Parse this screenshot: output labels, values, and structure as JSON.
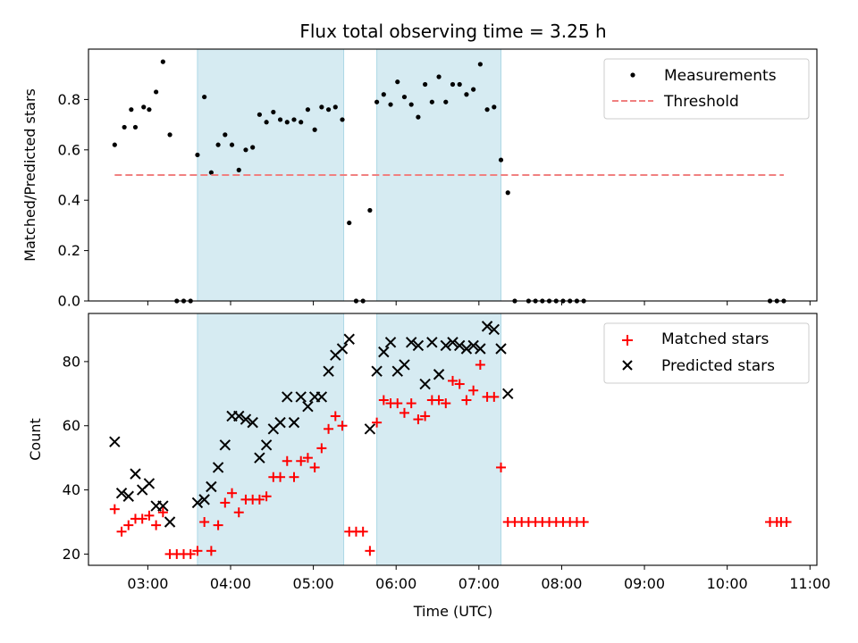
{
  "chart_data": [
    {
      "type": "scatter",
      "title": "Flux total observing time = 3.25 h",
      "xlabel": "",
      "ylabel": "Matched/Predicted stars",
      "xlim": [
        "02:17",
        "11:05"
      ],
      "ylim": [
        0,
        1.0
      ],
      "yticks": [
        0.0,
        0.2,
        0.4,
        0.6,
        0.8
      ],
      "ytick_labels": [
        "0.0",
        "0.2",
        "0.4",
        "0.6",
        "0.8"
      ],
      "legend_position": "top-right",
      "shaded_intervals": [
        [
          "03:36",
          "05:22"
        ],
        [
          "05:46",
          "07:16"
        ]
      ],
      "series": [
        {
          "name": "Measurements",
          "color": "#000000",
          "marker": "dot",
          "points": [
            [
              "02:36",
              0.62
            ],
            [
              "02:43",
              0.69
            ],
            [
              "02:48",
              0.76
            ],
            [
              "02:51",
              0.69
            ],
            [
              "02:57",
              0.77
            ],
            [
              "03:01",
              0.76
            ],
            [
              "03:06",
              0.83
            ],
            [
              "03:11",
              0.95
            ],
            [
              "03:16",
              0.66
            ],
            [
              "03:21",
              0.0
            ],
            [
              "03:26",
              0.0
            ],
            [
              "03:31",
              0.0
            ],
            [
              "03:36",
              0.58
            ],
            [
              "03:41",
              0.81
            ],
            [
              "03:46",
              0.51
            ],
            [
              "03:51",
              0.62
            ],
            [
              "03:56",
              0.66
            ],
            [
              "04:01",
              0.62
            ],
            [
              "04:06",
              0.52
            ],
            [
              "04:11",
              0.6
            ],
            [
              "04:16",
              0.61
            ],
            [
              "04:21",
              0.74
            ],
            [
              "04:26",
              0.71
            ],
            [
              "04:31",
              0.75
            ],
            [
              "04:36",
              0.72
            ],
            [
              "04:41",
              0.71
            ],
            [
              "04:46",
              0.72
            ],
            [
              "04:51",
              0.71
            ],
            [
              "04:56",
              0.76
            ],
            [
              "05:01",
              0.68
            ],
            [
              "05:06",
              0.77
            ],
            [
              "05:11",
              0.76
            ],
            [
              "05:16",
              0.77
            ],
            [
              "05:21",
              0.72
            ],
            [
              "05:26",
              0.31
            ],
            [
              "05:31",
              0.0
            ],
            [
              "05:36",
              0.0
            ],
            [
              "05:41",
              0.36
            ],
            [
              "05:46",
              0.79
            ],
            [
              "05:51",
              0.82
            ],
            [
              "05:56",
              0.78
            ],
            [
              "06:01",
              0.87
            ],
            [
              "06:06",
              0.81
            ],
            [
              "06:11",
              0.78
            ],
            [
              "06:16",
              0.73
            ],
            [
              "06:21",
              0.86
            ],
            [
              "06:26",
              0.79
            ],
            [
              "06:31",
              0.89
            ],
            [
              "06:36",
              0.79
            ],
            [
              "06:41",
              0.86
            ],
            [
              "06:46",
              0.86
            ],
            [
              "06:51",
              0.82
            ],
            [
              "06:56",
              0.84
            ],
            [
              "07:01",
              0.94
            ],
            [
              "07:06",
              0.76
            ],
            [
              "07:11",
              0.77
            ],
            [
              "07:16",
              0.56
            ],
            [
              "07:21",
              0.43
            ],
            [
              "07:26",
              0.0
            ],
            [
              "07:36",
              0.0
            ],
            [
              "07:41",
              0.0
            ],
            [
              "07:46",
              0.0
            ],
            [
              "07:51",
              0.0
            ],
            [
              "07:56",
              0.0
            ],
            [
              "08:01",
              0.0
            ],
            [
              "08:06",
              0.0
            ],
            [
              "08:11",
              0.0
            ],
            [
              "08:16",
              0.0
            ],
            [
              "10:31",
              0.0
            ],
            [
              "10:36",
              0.0
            ],
            [
              "10:41",
              0.0
            ]
          ]
        },
        {
          "name": "Threshold",
          "color": "#f08080",
          "style": "dashed",
          "points": [
            [
              "02:36",
              0.5
            ],
            [
              "10:41",
              0.5
            ]
          ]
        }
      ]
    },
    {
      "type": "scatter",
      "title": "",
      "xlabel": "Time (UTC)",
      "ylabel": "Count",
      "xlim": [
        "02:17",
        "11:05"
      ],
      "ylim": [
        16.5,
        95
      ],
      "yticks": [
        20,
        40,
        60,
        80
      ],
      "ytick_labels": [
        "20",
        "40",
        "60",
        "80"
      ],
      "xticks": [
        "03:00",
        "04:00",
        "05:00",
        "06:00",
        "07:00",
        "08:00",
        "09:00",
        "10:00",
        "11:00"
      ],
      "legend_position": "top-right",
      "shaded_intervals": [
        [
          "03:36",
          "05:22"
        ],
        [
          "05:46",
          "07:16"
        ]
      ],
      "series": [
        {
          "name": "Matched stars",
          "color": "#ff0000",
          "marker": "plus",
          "points": [
            [
              "02:36",
              34
            ],
            [
              "02:41",
              27
            ],
            [
              "02:46",
              29
            ],
            [
              "02:51",
              31
            ],
            [
              "02:56",
              31
            ],
            [
              "03:01",
              32
            ],
            [
              "03:06",
              29
            ],
            [
              "03:11",
              33
            ],
            [
              "03:16",
              20
            ],
            [
              "03:21",
              20
            ],
            [
              "03:26",
              20
            ],
            [
              "03:31",
              20
            ],
            [
              "03:36",
              21
            ],
            [
              "03:41",
              30
            ],
            [
              "03:46",
              21
            ],
            [
              "03:51",
              29
            ],
            [
              "03:56",
              36
            ],
            [
              "04:01",
              39
            ],
            [
              "04:06",
              33
            ],
            [
              "04:11",
              37
            ],
            [
              "04:16",
              37
            ],
            [
              "04:21",
              37
            ],
            [
              "04:26",
              38
            ],
            [
              "04:31",
              44
            ],
            [
              "04:36",
              44
            ],
            [
              "04:41",
              49
            ],
            [
              "04:46",
              44
            ],
            [
              "04:51",
              49
            ],
            [
              "04:56",
              50
            ],
            [
              "05:01",
              47
            ],
            [
              "05:06",
              53
            ],
            [
              "05:11",
              59
            ],
            [
              "05:16",
              63
            ],
            [
              "05:21",
              60
            ],
            [
              "05:26",
              27
            ],
            [
              "05:31",
              27
            ],
            [
              "05:36",
              27
            ],
            [
              "05:41",
              21
            ],
            [
              "05:46",
              61
            ],
            [
              "05:51",
              68
            ],
            [
              "05:56",
              67
            ],
            [
              "06:01",
              67
            ],
            [
              "06:06",
              64
            ],
            [
              "06:11",
              67
            ],
            [
              "06:16",
              62
            ],
            [
              "06:21",
              63
            ],
            [
              "06:26",
              68
            ],
            [
              "06:31",
              68
            ],
            [
              "06:36",
              67
            ],
            [
              "06:41",
              74
            ],
            [
              "06:46",
              73
            ],
            [
              "06:51",
              68
            ],
            [
              "06:56",
              71
            ],
            [
              "07:01",
              79
            ],
            [
              "07:06",
              69
            ],
            [
              "07:11",
              69
            ],
            [
              "07:16",
              47
            ],
            [
              "07:21",
              30
            ],
            [
              "07:26",
              30
            ],
            [
              "07:31",
              30
            ],
            [
              "07:36",
              30
            ],
            [
              "07:41",
              30
            ],
            [
              "07:46",
              30
            ],
            [
              "07:51",
              30
            ],
            [
              "07:56",
              30
            ],
            [
              "08:01",
              30
            ],
            [
              "08:06",
              30
            ],
            [
              "08:11",
              30
            ],
            [
              "08:16",
              30
            ],
            [
              "10:31",
              30
            ],
            [
              "10:36",
              30
            ],
            [
              "10:39",
              30
            ],
            [
              "10:43",
              30
            ]
          ]
        },
        {
          "name": "Predicted stars",
          "color": "#000000",
          "marker": "x",
          "points": [
            [
              "02:36",
              55
            ],
            [
              "02:41",
              39
            ],
            [
              "02:46",
              38
            ],
            [
              "02:51",
              45
            ],
            [
              "02:56",
              40
            ],
            [
              "03:01",
              42
            ],
            [
              "03:06",
              35
            ],
            [
              "03:11",
              35
            ],
            [
              "03:16",
              30
            ],
            [
              "03:36",
              36
            ],
            [
              "03:41",
              37
            ],
            [
              "03:46",
              41
            ],
            [
              "03:51",
              47
            ],
            [
              "03:56",
              54
            ],
            [
              "04:01",
              63
            ],
            [
              "04:06",
              63
            ],
            [
              "04:11",
              62
            ],
            [
              "04:16",
              61
            ],
            [
              "04:21",
              50
            ],
            [
              "04:26",
              54
            ],
            [
              "04:31",
              59
            ],
            [
              "04:36",
              61
            ],
            [
              "04:41",
              69
            ],
            [
              "04:46",
              61
            ],
            [
              "04:51",
              69
            ],
            [
              "04:56",
              66
            ],
            [
              "05:01",
              69
            ],
            [
              "05:06",
              69
            ],
            [
              "05:11",
              77
            ],
            [
              "05:16",
              82
            ],
            [
              "05:21",
              84
            ],
            [
              "05:26",
              87
            ],
            [
              "05:41",
              59
            ],
            [
              "05:46",
              77
            ],
            [
              "05:51",
              83
            ],
            [
              "05:56",
              86
            ],
            [
              "06:01",
              77
            ],
            [
              "06:06",
              79
            ],
            [
              "06:11",
              86
            ],
            [
              "06:16",
              85
            ],
            [
              "06:21",
              73
            ],
            [
              "06:26",
              86
            ],
            [
              "06:31",
              76
            ],
            [
              "06:36",
              85
            ],
            [
              "06:41",
              86
            ],
            [
              "06:46",
              85
            ],
            [
              "06:51",
              84
            ],
            [
              "06:56",
              85
            ],
            [
              "07:01",
              84
            ],
            [
              "07:06",
              91
            ],
            [
              "07:11",
              90
            ],
            [
              "07:16",
              84
            ],
            [
              "07:21",
              70
            ]
          ]
        }
      ]
    }
  ]
}
